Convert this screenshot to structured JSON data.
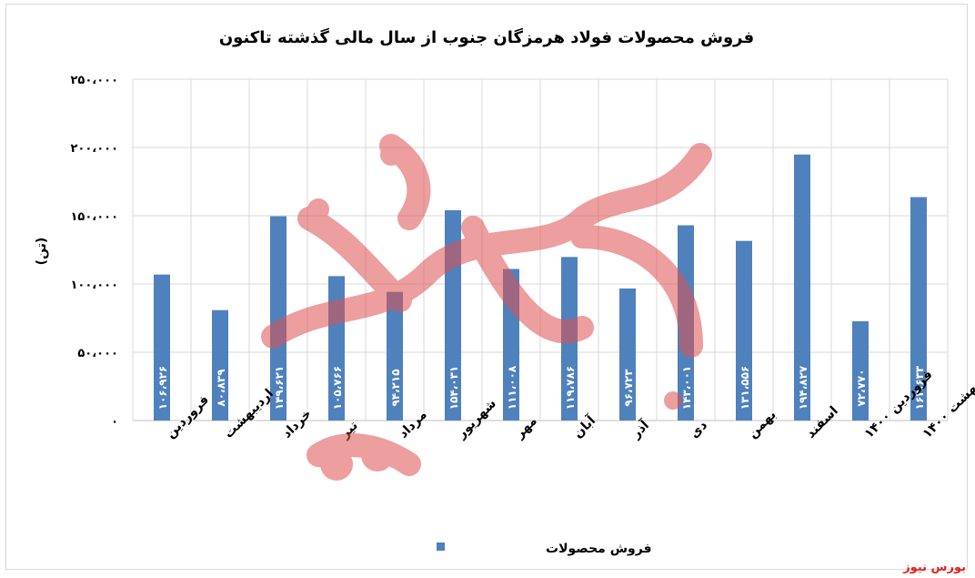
{
  "chart_data": {
    "type": "bar",
    "title": "فروش محصولات فولاد هرمزگان جنوب از سال مالی گذشته تاکنون",
    "ylabel": "(تن)",
    "xlabel": "",
    "ylim": [
      0,
      250000
    ],
    "y_ticks": [
      0,
      50000,
      100000,
      150000,
      200000,
      250000
    ],
    "y_tick_labels": [
      "۰",
      "۵۰،۰۰۰",
      "۱۰۰،۰۰۰",
      "۱۵۰،۰۰۰",
      "۲۰۰،۰۰۰",
      "۲۵۰،۰۰۰"
    ],
    "grid": true,
    "legend_position": "bottom",
    "bar_color": "#4f81bd",
    "categories": [
      "فروردین",
      "اردیبهشت",
      "خرداد",
      "تیر",
      "مرداد",
      "شهریور",
      "مهر",
      "آبان",
      "آذر",
      "دی",
      "بهمن",
      "اسفند",
      "فروردین ۱۴۰۰",
      "اردیبهشت ۱۴۰۰"
    ],
    "series": [
      {
        "name": "فروش محصولات",
        "values": [
          106926,
          80839,
          149621,
          105766,
          94215,
          154031,
          111008,
          119786,
          96723,
          143001,
          131556,
          194827,
          72770,
          163633
        ],
        "data_labels": [
          "۱۰۶،۹۲۶",
          "۸۰،۸۳۹",
          "۱۴۹،۶۲۱",
          "۱۰۵،۷۶۶",
          "۹۴،۲۱۵",
          "۱۵۴،۰۳۱",
          "۱۱۱،۰۰۸",
          "۱۱۹،۷۸۶",
          "۹۶،۷۲۳",
          "۱۴۳،۰۰۱",
          "۱۳۱،۵۵۶",
          "۱۹۴،۸۲۷",
          "۷۲،۷۷۰",
          "۱۶۳،۶۳۳"
        ]
      }
    ]
  },
  "watermark": {
    "text": "بورس نیوز",
    "color": "#e05050"
  },
  "brand_label": "بورس نیوز"
}
